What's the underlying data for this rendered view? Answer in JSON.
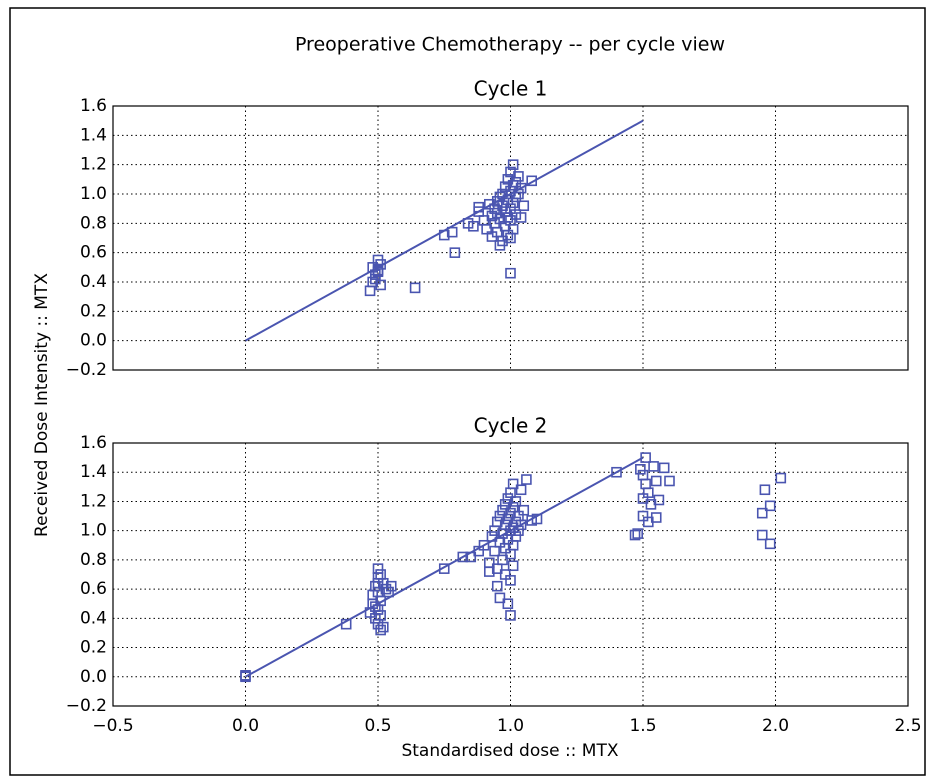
{
  "title": "Preoperative Chemotherapy -- per cycle view",
  "xlabel": "Standardised dose :: MTX",
  "ylabel": "Received Dose Intensity :: MTX",
  "chart_data": [
    {
      "type": "scatter",
      "title": "Cycle 1",
      "grid": true,
      "show_xticklabels": false,
      "xlim": [
        -0.5,
        2.5
      ],
      "ylim": [
        -0.2,
        1.6
      ],
      "xticks": [
        -0.5,
        0,
        0.5,
        1,
        1.5,
        2,
        2.5
      ],
      "yticks": [
        1.6,
        1.4,
        1.2,
        {
          "value": 1,
          "label": "1.0"
        },
        0.8,
        0.6,
        0.4,
        0.2,
        {
          "value": 0,
          "label": "0.0"
        },
        {
          "value": -0.2,
          "label": "−0.2"
        }
      ],
      "series": [
        {
          "type": "scatter",
          "color": "#4a55b0",
          "x": [
            0.48,
            0.49,
            0.5,
            0.51,
            0.5,
            0.49,
            0.51,
            0.47,
            0.5,
            0.48,
            0.64,
            0.75,
            0.78,
            0.79,
            0.84,
            0.86,
            0.88,
            0.88,
            0.9,
            0.91,
            0.92,
            0.93,
            0.93,
            0.94,
            0.94,
            0.95,
            0.95,
            0.95,
            0.96,
            0.96,
            0.97,
            0.97,
            0.97,
            0.98,
            0.98,
            0.98,
            0.99,
            0.99,
            0.99,
            1.0,
            1.0,
            1.0,
            1.0,
            1.0,
            1.0,
            1.01,
            1.01,
            1.01,
            1.01,
            1.02,
            1.02,
            1.02,
            1.03,
            1.03,
            1.04,
            1.04,
            1.05,
            1.08,
            0.96,
            0.99
          ],
          "values": [
            0.5,
            0.45,
            0.48,
            0.52,
            0.55,
            0.42,
            0.38,
            0.34,
            0.47,
            0.4,
            0.36,
            0.72,
            0.74,
            0.6,
            0.8,
            0.78,
            0.88,
            0.91,
            0.82,
            0.76,
            0.93,
            0.85,
            0.71,
            0.9,
            0.8,
            0.95,
            0.87,
            0.74,
            0.98,
            0.83,
            1.0,
            0.92,
            0.68,
            1.05,
            0.88,
            0.78,
            1.1,
            0.96,
            0.72,
            1.15,
            1.02,
            0.9,
            0.82,
            0.7,
            0.46,
            1.2,
            1.06,
            0.94,
            0.76,
            1.08,
            0.98,
            0.86,
            1.12,
            1.0,
            1.04,
            0.84,
            0.92,
            1.09,
            0.65,
            0.84
          ]
        },
        {
          "type": "line",
          "color": "#4a55b0",
          "x": [
            0,
            1.5
          ],
          "values": [
            0,
            1.5
          ]
        }
      ]
    },
    {
      "type": "scatter",
      "title": "Cycle 2",
      "grid": true,
      "show_xticklabels": true,
      "xlim": [
        -0.5,
        2.5
      ],
      "ylim": [
        -0.2,
        1.6
      ],
      "xticks": [
        {
          "value": -0.5,
          "label": "−0.5"
        },
        {
          "value": 0,
          "label": "0.0"
        },
        0.5,
        {
          "value": 1,
          "label": "1.0"
        },
        1.5,
        {
          "value": 2,
          "label": "2.0"
        },
        2.5
      ],
      "yticks": [
        1.6,
        1.4,
        1.2,
        {
          "value": 1,
          "label": "1.0"
        },
        0.8,
        0.6,
        0.4,
        0.2,
        {
          "value": 0,
          "label": "0.0"
        },
        {
          "value": -0.2,
          "label": "−0.2"
        }
      ],
      "series": [
        {
          "type": "scatter",
          "color": "#4a55b0",
          "x": [
            0,
            0,
            0.38,
            0.47,
            0.48,
            0.48,
            0.49,
            0.49,
            0.5,
            0.5,
            0.5,
            0.5,
            0.5,
            0.51,
            0.51,
            0.51,
            0.52,
            0.52,
            0.53,
            0.54,
            0.55,
            0.5,
            0.49,
            0.51,
            0.75,
            0.82,
            0.85,
            0.88,
            0.9,
            0.92,
            0.92,
            0.93,
            0.94,
            0.94,
            0.95,
            0.95,
            0.95,
            0.96,
            0.96,
            0.96,
            0.97,
            0.97,
            0.97,
            0.98,
            0.98,
            0.98,
            0.98,
            0.99,
            0.99,
            0.99,
            0.99,
            1.0,
            1.0,
            1.0,
            1.0,
            1.0,
            1.0,
            1.01,
            1.01,
            1.01,
            1.01,
            1.01,
            1.02,
            1.02,
            1.02,
            1.03,
            1.03,
            1.04,
            1.04,
            1.05,
            1.06,
            1.08,
            1.1,
            1.4,
            1.47,
            1.48,
            1.49,
            1.5,
            1.5,
            1.5,
            1.51,
            1.51,
            1.52,
            1.52,
            1.53,
            1.54,
            1.55,
            1.55,
            1.56,
            1.58,
            1.6,
            1.95,
            1.96,
            1.95,
            1.98,
            1.98,
            2.02
          ],
          "values": [
            0,
            0.01,
            0.36,
            0.44,
            0.56,
            0.5,
            0.62,
            0.4,
            0.74,
            0.68,
            0.58,
            0.46,
            0.36,
            0.7,
            0.52,
            0.32,
            0.64,
            0.34,
            0.6,
            0.58,
            0.62,
            0.64,
            0.48,
            0.42,
            0.74,
            0.82,
            0.82,
            0.86,
            0.9,
            0.78,
            0.72,
            0.96,
            1.0,
            0.86,
            1.06,
            0.74,
            0.62,
            1.1,
            0.92,
            0.54,
            1.14,
            0.98,
            0.8,
            1.18,
            1.04,
            0.88,
            0.7,
            1.22,
            1.08,
            0.94,
            0.5,
            1.26,
            1.12,
            1.0,
            0.84,
            0.66,
            0.42,
            1.32,
            1.16,
            1.02,
            0.9,
            0.76,
            1.2,
            1.06,
            0.96,
            1.1,
            1.0,
            1.28,
            1.04,
            1.14,
            1.35,
            1.07,
            1.08,
            1.4,
            0.97,
            0.98,
            1.42,
            1.38,
            1.22,
            1.1,
            1.5,
            1.32,
            1.26,
            1.06,
            1.18,
            1.44,
            1.34,
            1.09,
            1.21,
            1.43,
            1.34,
            1.12,
            1.28,
            0.97,
            1.17,
            0.91,
            1.36
          ]
        },
        {
          "type": "line",
          "color": "#4a55b0",
          "x": [
            0,
            1.5
          ],
          "values": [
            0,
            1.5
          ]
        }
      ]
    }
  ]
}
